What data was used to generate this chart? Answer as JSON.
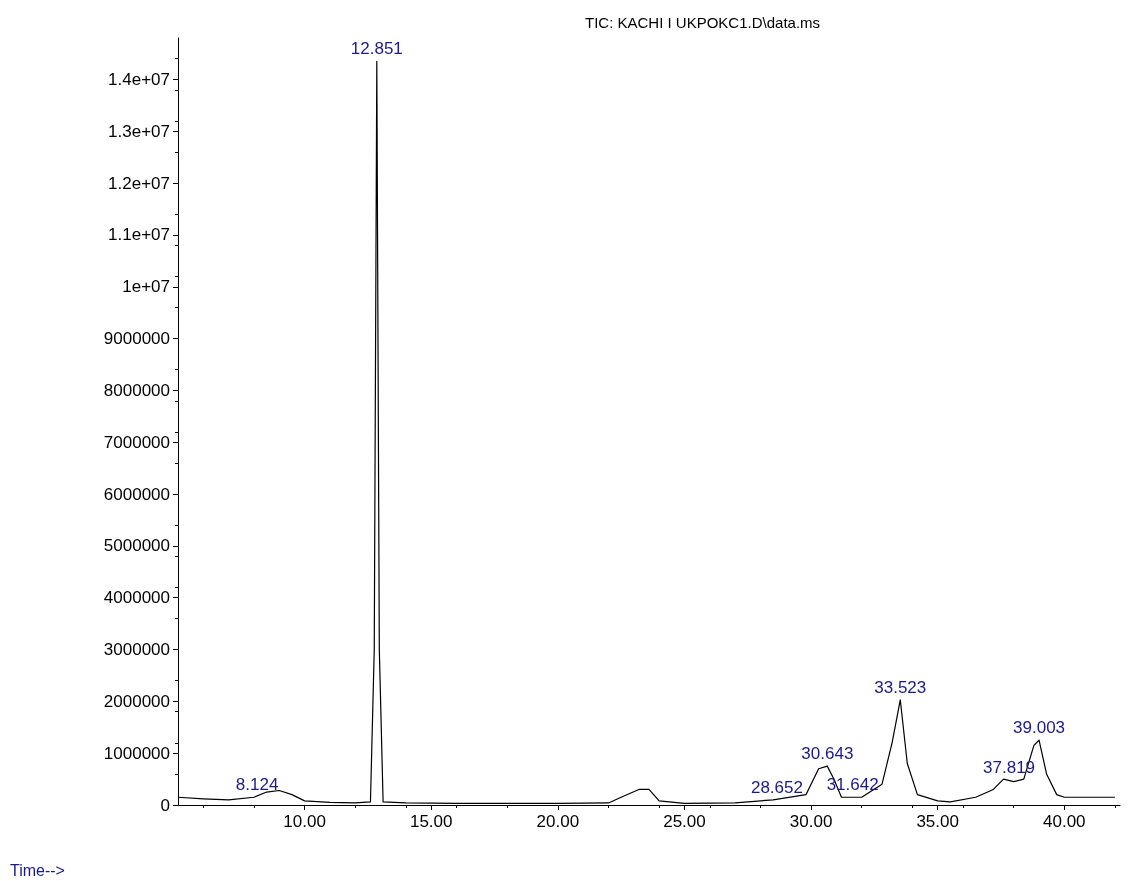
{
  "chart_data": {
    "type": "line",
    "title": "TIC: KACHI I UKPOKC1.D\\data.ms",
    "xlabel": "Time-->",
    "color": "#000000",
    "x": [
      5,
      6,
      7,
      8,
      8.5,
      9,
      9.5,
      10,
      11,
      12,
      12.6,
      12.75,
      12.851,
      12.95,
      13.1,
      14,
      16,
      18,
      20,
      22,
      22.5,
      23.2,
      23.6,
      24,
      25,
      27,
      28.5,
      29.8,
      30.3,
      30.64,
      30.9,
      31.2,
      32,
      32.8,
      33.2,
      33.523,
      33.8,
      34.2,
      35,
      35.5,
      36.5,
      37.2,
      37.6,
      38,
      38.4,
      38.8,
      39.003,
      39.3,
      39.7,
      40,
      42
    ],
    "values": [
      150000,
      120000,
      100000,
      150000,
      250000,
      280000,
      200000,
      80000,
      50000,
      40000,
      60000,
      3000000,
      14350000,
      3000000,
      60000,
      40000,
      30000,
      30000,
      30000,
      40000,
      150000,
      300000,
      300000,
      80000,
      30000,
      40000,
      100000,
      200000,
      700000,
      750000,
      500000,
      150000,
      150000,
      400000,
      1200000,
      2030000,
      800000,
      200000,
      80000,
      60000,
      150000,
      300000,
      500000,
      450000,
      500000,
      1150000,
      1250000,
      600000,
      200000,
      150000,
      150000
    ],
    "xlim": [
      5,
      42.2
    ],
    "xticks": [
      {
        "value": 10,
        "label": "10.00"
      },
      {
        "value": 15,
        "label": "15.00"
      },
      {
        "value": 20,
        "label": "20.00"
      },
      {
        "value": 25,
        "label": "25.00"
      },
      {
        "value": 30,
        "label": "30.00"
      },
      {
        "value": 35,
        "label": "35.00"
      },
      {
        "value": 40,
        "label": "40.00"
      }
    ],
    "ylim": [
      0,
      14800000
    ],
    "yticks": [
      0,
      1000000,
      2000000,
      3000000,
      4000000,
      5000000,
      6000000,
      7000000,
      8000000,
      9000000,
      {
        "value": 10000000,
        "label": "1e+07"
      },
      {
        "value": 11000000,
        "label": "1.1e+07"
      },
      {
        "value": 12000000,
        "label": "1.2e+07"
      },
      {
        "value": 13000000,
        "label": "1.3e+07"
      },
      {
        "value": 14000000,
        "label": "1.4e+07"
      }
    ],
    "grid": false,
    "marker": "none",
    "line_style": "solid",
    "annotations": [
      {
        "text": "8.124",
        "x": 8.124,
        "y": 150000
      },
      {
        "text": "12.851",
        "x": 12.851,
        "y": 14350000
      },
      {
        "text": "28.652",
        "x": 28.652,
        "y": 100000
      },
      {
        "text": "30.643",
        "x": 30.643,
        "y": 750000
      },
      {
        "text": "31.642",
        "x": 31.642,
        "y": 150000
      },
      {
        "text": "33.523",
        "x": 33.523,
        "y": 2030000
      },
      {
        "text": "37.819",
        "x": 37.819,
        "y": 480000
      },
      {
        "text": "39.003",
        "x": 39.003,
        "y": 1250000
      }
    ]
  }
}
